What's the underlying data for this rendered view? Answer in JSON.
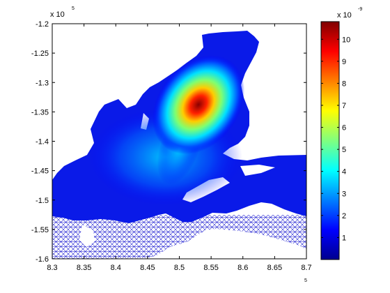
{
  "chart_data": {
    "type": "heatmap",
    "title": "",
    "xlabel": "",
    "ylabel": "",
    "x_ticks": [
      "8.3",
      "8.35",
      "8.4",
      "8.45",
      "8.5",
      "8.55",
      "8.6",
      "8.65",
      "8.7"
    ],
    "x_range": [
      830000,
      870000
    ],
    "x_multiplier": {
      "base": "x 10",
      "exponent": "5"
    },
    "y_ticks": [
      "-1.2",
      "-1.25",
      "-1.3",
      "-1.35",
      "-1.4",
      "-1.45",
      "-1.5",
      "-1.55",
      "-1.6"
    ],
    "y_range": [
      -160000,
      -120000
    ],
    "y_multiplier": {
      "base": "x 10",
      "exponent": "5"
    },
    "colorbar": {
      "colormap": "jet",
      "range": [
        0,
        1.08e-08
      ],
      "ticks": [
        "1",
        "2",
        "3",
        "4",
        "5",
        "6",
        "7",
        "8",
        "9",
        "10"
      ],
      "multiplier": {
        "base": "x 10",
        "exponent": "-9"
      }
    },
    "peak": {
      "x": 852700,
      "y": -134000,
      "value": 1.08e-08
    },
    "grid": false,
    "legend": "colorbar-right",
    "colors": {
      "low": "#00008f",
      "mid": "#00ffff",
      "high": "#800000",
      "mesh": "#1a1ad0"
    }
  }
}
